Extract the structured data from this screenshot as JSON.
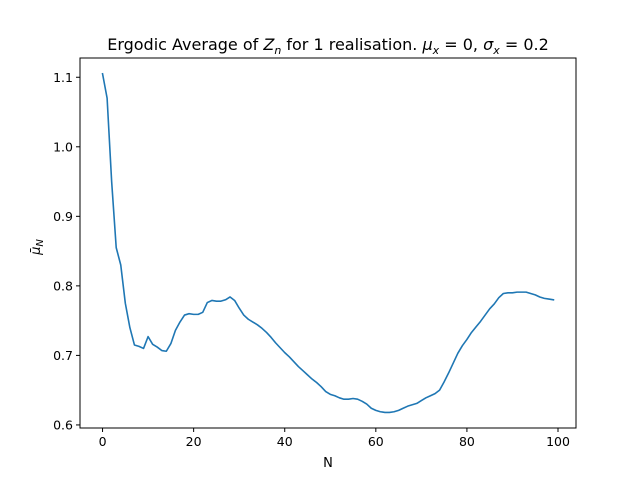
{
  "chart_data": {
    "type": "line",
    "title_prefix": "Ergodic Average of ",
    "title_z": "Z",
    "title_z_sub": "n",
    "title_mid": " for 1 realisation. ",
    "title_mu": "μ",
    "title_mu_sub": "x",
    "title_mu_val": " = 0, ",
    "title_sigma": "σ",
    "title_sigma_sub": "x",
    "title_sigma_val": " = 0.2",
    "xlabel": "N",
    "ylabel_main": "μ̄",
    "ylabel_sub": "N",
    "xlim": [
      -4.95,
      103.95
    ],
    "ylim": [
      0.5956,
      1.1277
    ],
    "xticks": [
      0,
      20,
      40,
      60,
      80,
      100
    ],
    "yticks": [
      0.6,
      0.7,
      0.8,
      0.9,
      1.0,
      1.1
    ],
    "ytick_labels": [
      "0.6",
      "0.7",
      "0.8",
      "0.9",
      "1.0",
      "1.1"
    ],
    "grid": false,
    "series": [
      {
        "color": "#1f77b4",
        "x": [
          0,
          1,
          2,
          3,
          4,
          5,
          6,
          7,
          8,
          9,
          10,
          11,
          12,
          13,
          14,
          15,
          16,
          17,
          18,
          19,
          20,
          21,
          22,
          23,
          24,
          25,
          26,
          27,
          28,
          29,
          30,
          31,
          32,
          33,
          34,
          35,
          36,
          37,
          38,
          39,
          40,
          41,
          42,
          43,
          44,
          45,
          46,
          47,
          48,
          49,
          50,
          51,
          52,
          53,
          54,
          55,
          56,
          57,
          58,
          59,
          60,
          61,
          62,
          63,
          64,
          65,
          66,
          67,
          68,
          69,
          70,
          71,
          72,
          73,
          74,
          75,
          76,
          77,
          78,
          79,
          80,
          81,
          82,
          83,
          84,
          85,
          86,
          87,
          88,
          89,
          90,
          91,
          92,
          93,
          94,
          95,
          96,
          97,
          98,
          99
        ],
        "y": [
          1.105,
          1.07,
          0.95,
          0.855,
          0.83,
          0.775,
          0.74,
          0.715,
          0.713,
          0.71,
          0.727,
          0.716,
          0.712,
          0.707,
          0.706,
          0.717,
          0.736,
          0.748,
          0.758,
          0.76,
          0.759,
          0.759,
          0.762,
          0.776,
          0.779,
          0.778,
          0.778,
          0.78,
          0.784,
          0.779,
          0.768,
          0.758,
          0.752,
          0.748,
          0.744,
          0.739,
          0.733,
          0.726,
          0.718,
          0.711,
          0.704,
          0.698,
          0.691,
          0.684,
          0.678,
          0.672,
          0.666,
          0.661,
          0.655,
          0.648,
          0.644,
          0.642,
          0.639,
          0.637,
          0.637,
          0.638,
          0.637,
          0.634,
          0.63,
          0.624,
          0.621,
          0.619,
          0.618,
          0.618,
          0.619,
          0.621,
          0.624,
          0.627,
          0.629,
          0.631,
          0.635,
          0.639,
          0.642,
          0.645,
          0.65,
          0.662,
          0.675,
          0.689,
          0.703,
          0.714,
          0.723,
          0.733,
          0.741,
          0.749,
          0.758,
          0.767,
          0.774,
          0.783,
          0.789,
          0.79,
          0.79,
          0.791,
          0.791,
          0.791,
          0.789,
          0.787,
          0.784,
          0.782,
          0.781,
          0.78
        ]
      }
    ]
  }
}
